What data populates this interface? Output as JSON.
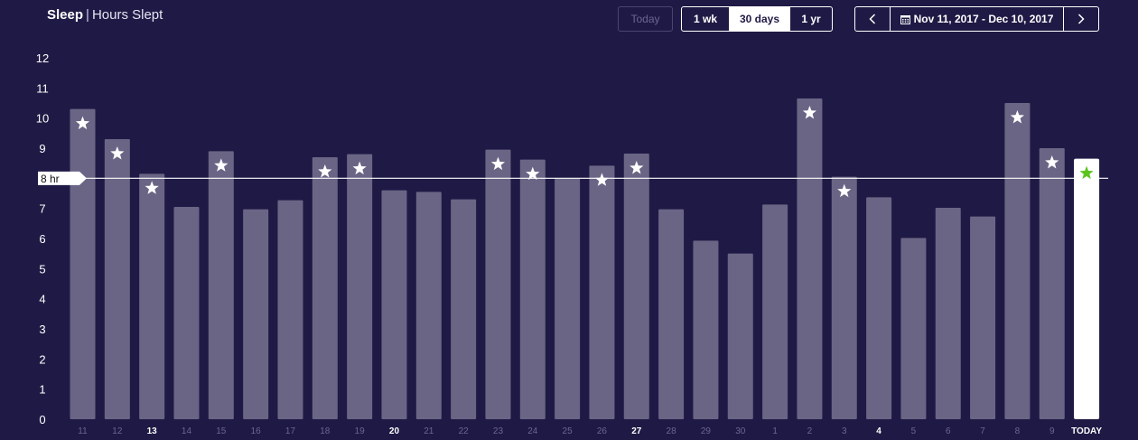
{
  "header": {
    "title": "Sleep",
    "separator": "|",
    "subtitle": "Hours Slept"
  },
  "controls": {
    "today_label": "Today",
    "ranges": [
      {
        "label": "1 wk",
        "active": false
      },
      {
        "label": "30 days",
        "active": true
      },
      {
        "label": "1 yr",
        "active": false
      }
    ],
    "prev_icon": "chevron-left-icon",
    "next_icon": "chevron-right-icon",
    "calendar_icon": "calendar-icon",
    "date_range": "Nov 11, 2017 - Dec 10, 2017"
  },
  "colors": {
    "background": "#1f1a45",
    "bar": "#6a6585",
    "bar_today": "#ffffff",
    "star": "#ffffff",
    "star_today": "#5cc41e",
    "goal_line": "#ffffff",
    "tick_dim": "#6b6790",
    "tick_bold": "#ffffff"
  },
  "chart_data": {
    "type": "bar",
    "categories": [
      "11",
      "12",
      "13",
      "14",
      "15",
      "16",
      "17",
      "18",
      "19",
      "20",
      "21",
      "22",
      "23",
      "24",
      "25",
      "26",
      "27",
      "28",
      "29",
      "30",
      "1",
      "2",
      "3",
      "4",
      "5",
      "6",
      "7",
      "8",
      "9",
      "TODAY"
    ],
    "highlighted_categories": [
      "13",
      "20",
      "27",
      "4",
      "TODAY"
    ],
    "values": [
      10.3,
      9.3,
      8.15,
      7.05,
      8.9,
      6.97,
      7.27,
      8.7,
      8.8,
      7.6,
      7.55,
      7.3,
      8.95,
      8.62,
      8.0,
      8.42,
      8.82,
      6.97,
      5.93,
      5.5,
      7.13,
      10.65,
      8.05,
      7.37,
      6.02,
      7.02,
      6.73,
      10.5,
      9.0,
      8.65
    ],
    "goal_met": [
      true,
      true,
      true,
      false,
      true,
      false,
      false,
      true,
      true,
      false,
      false,
      false,
      true,
      true,
      false,
      true,
      true,
      false,
      false,
      false,
      false,
      true,
      true,
      false,
      false,
      false,
      false,
      true,
      true,
      true
    ],
    "goal": 8,
    "goal_label": "8 hr",
    "yticks": [
      0,
      1,
      2,
      3,
      4,
      5,
      6,
      7,
      8,
      9,
      10,
      11,
      12
    ],
    "ylim": [
      0,
      12
    ],
    "grid": false
  }
}
